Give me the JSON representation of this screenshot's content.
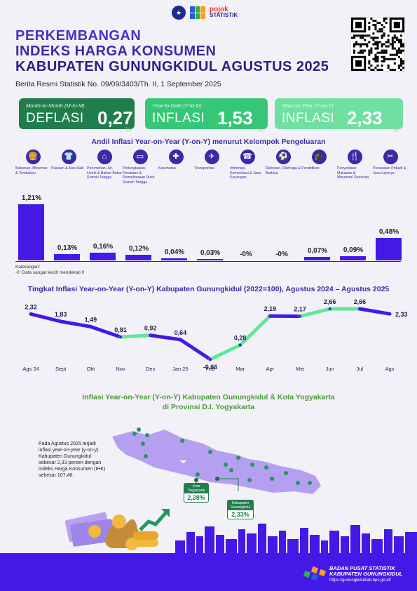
{
  "header": {
    "logo_bps": "BPS",
    "logo_pojok": "pojok",
    "logo_pojok_sub": "STATISTIK",
    "title_line1": "PERKEMBANGAN",
    "title_line2": "INDEKS HARGA KONSUMEN",
    "title_line3": "KABUPATEN GUNUNGKIDUL AGUSTUS 2025",
    "subtitle": "Berita Resmi Statistik No. 09/09/3403/Th. II, 1 September 2025"
  },
  "cards": [
    {
      "label": "Month-to-Month (M-to-M)",
      "kind": "DEFLASI",
      "value": "0,27",
      "unit": "%"
    },
    {
      "label": "Year-to-Date (Y-to-D)",
      "kind": "INFLASI",
      "value": "1,53",
      "unit": "%"
    },
    {
      "label": "Year-on-Year (Y-on-Y)",
      "kind": "INFLASI",
      "value": "2,33",
      "unit": "%"
    }
  ],
  "section1_title": "Andil Inflasi Year-on-Year (Y-on-Y) menurut Kelompok Pengeluaran",
  "categories": [
    {
      "name": "Makanan, Minuman & Tembakau",
      "icon": "food-icon",
      "glyph": "🍔",
      "value": 1.21,
      "label": "1,21%"
    },
    {
      "name": "Pakaian & Alas Kaki",
      "icon": "clothes-icon",
      "glyph": "👕",
      "value": 0.13,
      "label": "0,13%"
    },
    {
      "name": "Perumahan, Air, Listrik & Bahan Bakar Rumah Tangga",
      "icon": "house-icon",
      "glyph": "⌂",
      "value": 0.16,
      "label": "0,16%"
    },
    {
      "name": "Perlengkapan, Peralatan & Pemeliharaan Rutin Rumah Tangga",
      "icon": "sofa-icon",
      "glyph": "▭",
      "value": 0.12,
      "label": "0,12%"
    },
    {
      "name": "Kesehatan",
      "icon": "health-icon",
      "glyph": "✚",
      "value": 0.04,
      "label": "0,04%"
    },
    {
      "name": "Transportasi",
      "icon": "plane-icon",
      "glyph": "✈",
      "value": 0.03,
      "label": "0,03%"
    },
    {
      "name": "Informasi, Komunikasi & Jasa Keuangan",
      "icon": "phone-icon",
      "glyph": "☎",
      "value": 0.0,
      "label": "-0%"
    },
    {
      "name": "Rekreasi, Olahraga & Budaya",
      "icon": "sport-icon",
      "glyph": "⚽",
      "value": 0.0,
      "label": "-0%"
    },
    {
      "name": "Pendidikan",
      "icon": "graduation-icon",
      "glyph": "🎓",
      "value": 0.07,
      "label": "0,07%"
    },
    {
      "name": "Penyediaan Makanan & Minuman/ Restoran",
      "icon": "restaurant-icon",
      "glyph": "🍴",
      "value": 0.09,
      "label": "0,09%"
    },
    {
      "name": "Perawatan Pribadi & Jasa Lainnya",
      "icon": "tools-icon",
      "glyph": "✂",
      "value": 0.48,
      "label": "0,48%"
    }
  ],
  "note_title": "Keterangan:",
  "note_text": "-0: Data sangat kecil/ mendekati 0",
  "section2_title": "Tingkat Inflasi Year-on-Year (Y-on-Y) Kabupaten Gunungkidul (2022=100), Agustus 2024 – Agustus 2025",
  "chart_data": {
    "type": "line",
    "categories": [
      "Ags 24",
      "Sept",
      "Okt",
      "Nov",
      "Des",
      "Jan 25",
      "Feb",
      "Mar",
      "Apr",
      "Mei",
      "Jun",
      "Jul",
      "Ags"
    ],
    "values": [
      2.32,
      1.83,
      1.49,
      0.81,
      0.92,
      0.64,
      -0.66,
      0.28,
      2.19,
      2.17,
      2.66,
      2.66,
      2.33
    ],
    "labels": [
      "2,32",
      "1,83",
      "1,49",
      "0,81",
      "0,92",
      "0,64",
      "-0,66",
      "0,28",
      "2,19",
      "2,17",
      "2,66",
      "2,66",
      "2,33"
    ],
    "colors": {
      "up": "#5de89a",
      "down": "#4419e8"
    }
  },
  "section3_title_line1": "Inflasi Year-on-Year (Y-on-Y) Kabupaten Gunungkidul & Kota Yogyakarta",
  "section3_title_line2": "di Provinsi D.I. Yogyakarta",
  "paragraph": "Pada Agustus 2025 terjadi inflasi year-on-year (y-on-y) Kabupaten Gunungkidul sebesar 2,33 persen dengan Indeks Harga Konsumen (IHK) sebesar 107,46.",
  "map_labels": [
    {
      "name": "Kota Yogyakarta",
      "value": "2,28%"
    },
    {
      "name": "Kabupaten Gunungkidul",
      "value": "2,33%"
    }
  ],
  "footer": {
    "line1": "BADAN PUSAT STATISTIK",
    "line2": "KABUPATEN GUNUNGKIDUL",
    "url": "https://gunungkidulkab.bps.go.id/"
  }
}
